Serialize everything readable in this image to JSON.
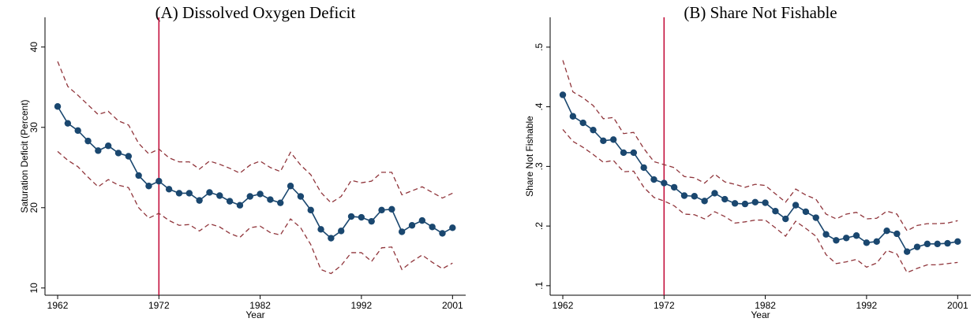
{
  "chart_data": [
    {
      "type": "line",
      "title": "(A) Dissolved Oxygen Deficit",
      "xlabel": "Year",
      "ylabel": "Saturation Deficit (Percent)",
      "x": [
        1962,
        1963,
        1964,
        1965,
        1966,
        1967,
        1968,
        1969,
        1970,
        1971,
        1972,
        1973,
        1974,
        1975,
        1976,
        1977,
        1978,
        1979,
        1980,
        1981,
        1982,
        1983,
        1984,
        1985,
        1986,
        1987,
        1988,
        1989,
        1990,
        1991,
        1992,
        1993,
        1994,
        1995,
        1996,
        1997,
        1998,
        1999,
        2000,
        2001
      ],
      "xlim": [
        1960.75,
        2002.3
      ],
      "xticks": [
        1962,
        1972,
        1982,
        1992,
        2001
      ],
      "ylim": [
        9.1,
        43.7
      ],
      "yticks": [
        10,
        20,
        30,
        40
      ],
      "vline": 1972,
      "vline_color": "#c10534",
      "series": [
        {
          "color": "#90353b",
          "linestyle": "dashed",
          "markers": false,
          "values": [
            38.2,
            35.1,
            34.0,
            32.8,
            31.6,
            32.0,
            30.8,
            30.3,
            28.0,
            26.7,
            27.3,
            26.2,
            25.7,
            25.7,
            24.8,
            25.8,
            25.4,
            24.9,
            24.3,
            25.3,
            25.8,
            25.0,
            24.5,
            26.9,
            25.3,
            24.1,
            21.9,
            20.6,
            21.4,
            23.4,
            23.1,
            23.3,
            24.4,
            24.4,
            21.6,
            22.1,
            22.6,
            21.9,
            21.2,
            21.8
          ]
        },
        {
          "color": "#1a476f",
          "linestyle": "solid",
          "markers": true,
          "values": [
            32.6,
            30.5,
            29.6,
            28.3,
            27.1,
            27.7,
            26.8,
            26.4,
            24.0,
            22.7,
            23.3,
            22.3,
            21.8,
            21.8,
            20.9,
            21.9,
            21.5,
            20.8,
            20.3,
            21.4,
            21.7,
            21.0,
            20.6,
            22.7,
            21.4,
            19.7,
            17.3,
            16.2,
            17.1,
            18.9,
            18.8,
            18.3,
            19.7,
            19.8,
            17.0,
            17.8,
            18.4,
            17.6,
            16.8,
            17.5
          ]
        },
        {
          "color": "#90353b",
          "linestyle": "dashed",
          "markers": false,
          "values": [
            27.0,
            25.9,
            25.1,
            23.8,
            22.6,
            23.5,
            22.8,
            22.5,
            20.0,
            18.7,
            19.3,
            18.4,
            17.8,
            17.9,
            17.1,
            18.0,
            17.6,
            16.8,
            16.3,
            17.5,
            17.7,
            16.9,
            16.6,
            18.6,
            17.5,
            15.4,
            12.3,
            11.8,
            12.8,
            14.4,
            14.4,
            13.3,
            15.0,
            15.1,
            12.3,
            13.3,
            14.1,
            13.2,
            12.4,
            13.1
          ]
        }
      ]
    },
    {
      "type": "line",
      "title": "(B) Share Not Fishable",
      "xlabel": "Year",
      "ylabel": "Share Not Fishable",
      "x": [
        1962,
        1963,
        1964,
        1965,
        1966,
        1967,
        1968,
        1969,
        1970,
        1971,
        1972,
        1973,
        1974,
        1975,
        1976,
        1977,
        1978,
        1979,
        1980,
        1981,
        1982,
        1983,
        1984,
        1985,
        1986,
        1987,
        1988,
        1989,
        1990,
        1991,
        1992,
        1993,
        1994,
        1995,
        1996,
        1997,
        1998,
        1999,
        2000,
        2001
      ],
      "xlim": [
        1960.75,
        2002.3
      ],
      "xticks": [
        1962,
        1972,
        1982,
        1992,
        2001
      ],
      "ylim": [
        0.084,
        0.55
      ],
      "yticks": [
        {
          "value": 0.1,
          "label": ".1"
        },
        {
          "value": 0.2,
          "label": ".2"
        },
        {
          "value": 0.3,
          "label": ".3"
        },
        {
          "value": 0.4,
          "label": ".4"
        },
        {
          "value": 0.5,
          "label": ".5"
        }
      ],
      "vline": 1972,
      "vline_color": "#c10534",
      "series": [
        {
          "color": "#90353b",
          "linestyle": "dashed",
          "markers": false,
          "values": [
            0.478,
            0.425,
            0.415,
            0.402,
            0.38,
            0.382,
            0.355,
            0.357,
            0.33,
            0.308,
            0.303,
            0.298,
            0.283,
            0.281,
            0.272,
            0.287,
            0.274,
            0.27,
            0.265,
            0.27,
            0.268,
            0.254,
            0.24,
            0.262,
            0.252,
            0.245,
            0.22,
            0.212,
            0.22,
            0.223,
            0.212,
            0.213,
            0.225,
            0.22,
            0.192,
            0.201,
            0.204,
            0.204,
            0.205,
            0.209
          ]
        },
        {
          "color": "#1a476f",
          "linestyle": "solid",
          "markers": true,
          "values": [
            0.42,
            0.384,
            0.373,
            0.361,
            0.343,
            0.345,
            0.323,
            0.323,
            0.298,
            0.278,
            0.272,
            0.265,
            0.251,
            0.25,
            0.242,
            0.255,
            0.245,
            0.238,
            0.237,
            0.24,
            0.239,
            0.225,
            0.212,
            0.235,
            0.224,
            0.214,
            0.186,
            0.176,
            0.18,
            0.184,
            0.172,
            0.174,
            0.192,
            0.187,
            0.157,
            0.165,
            0.17,
            0.17,
            0.171,
            0.174
          ]
        },
        {
          "color": "#90353b",
          "linestyle": "dashed",
          "markers": false,
          "values": [
            0.362,
            0.342,
            0.332,
            0.32,
            0.307,
            0.31,
            0.291,
            0.292,
            0.265,
            0.248,
            0.242,
            0.234,
            0.22,
            0.219,
            0.212,
            0.224,
            0.216,
            0.205,
            0.207,
            0.21,
            0.21,
            0.197,
            0.183,
            0.208,
            0.196,
            0.183,
            0.152,
            0.137,
            0.14,
            0.144,
            0.131,
            0.138,
            0.159,
            0.153,
            0.122,
            0.129,
            0.135,
            0.135,
            0.137,
            0.139
          ]
        }
      ]
    }
  ]
}
